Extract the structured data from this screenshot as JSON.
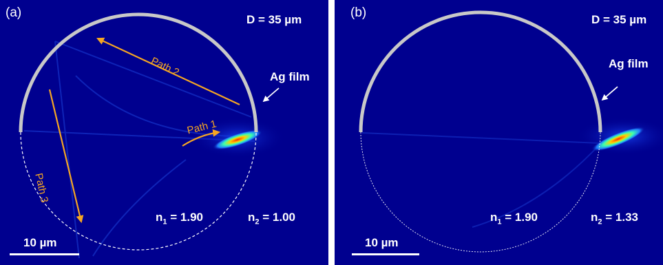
{
  "panels": [
    {
      "label": "(a)",
      "diameter": "D = 35 µm",
      "film": "Ag film",
      "n1_prefix": "n",
      "n1_sub": "1",
      "n1_value": " = 1.90",
      "n2_prefix": "n",
      "n2_sub": "2",
      "n2_value": " = 1.00",
      "scale": "10 µm",
      "paths": [
        "Path 1",
        "Path 2",
        "Path 3"
      ]
    },
    {
      "label": "(b)",
      "diameter": "D = 35 µm",
      "film": "Ag film",
      "n1_prefix": "n",
      "n1_sub": "1",
      "n1_value": " = 1.90",
      "n2_prefix": "n",
      "n2_sub": "2",
      "n2_value": " = 1.33",
      "scale": "10 µm"
    }
  ],
  "colors": {
    "background": "#00008f",
    "annotation": "#f5a623",
    "film": "#c8c8c8",
    "text": "#ffffff"
  }
}
